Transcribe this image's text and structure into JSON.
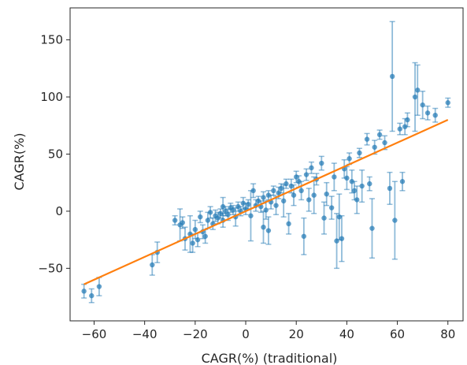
{
  "chart_data": {
    "type": "scatter",
    "title": "",
    "xlabel": "CAGR(%) (traditional)",
    "ylabel": "CAGR(%)",
    "xlim": [
      -69.5,
      86
    ],
    "ylim": [
      -96,
      178
    ],
    "xticks": [
      -60,
      -40,
      -20,
      0,
      20,
      40,
      60,
      80
    ],
    "yticks": [
      -50,
      0,
      50,
      100,
      150
    ],
    "xtick_labels": [
      "−60",
      "−40",
      "−20",
      "0",
      "20",
      "40",
      "60",
      "80"
    ],
    "ytick_labels": [
      "−50",
      "0",
      "50",
      "100",
      "150"
    ],
    "grid": false,
    "legend": "none",
    "colors": {
      "points": "#1f77b4",
      "fit_line": "#ff7f0e",
      "axes": "#262626"
    },
    "fit_line": {
      "x": [
        -64,
        80
      ],
      "y": [
        -64,
        80
      ]
    },
    "series": [
      {
        "points": [
          [
            -64,
            -70,
            6
          ],
          [
            -61,
            -74,
            6
          ],
          [
            -58,
            -66,
            8
          ],
          [
            -37,
            -47,
            9
          ],
          [
            -35,
            -36,
            9
          ],
          [
            -28,
            -8,
            4
          ],
          [
            -25,
            -10,
            5
          ],
          [
            -24,
            -24,
            10
          ],
          [
            -22,
            -20,
            16
          ],
          [
            -20,
            -16,
            8
          ],
          [
            -19,
            -25,
            6
          ],
          [
            -18,
            -5,
            5
          ],
          [
            -17,
            -18,
            6
          ],
          [
            -16,
            -22,
            6
          ],
          [
            -15,
            -8,
            7
          ],
          [
            -14,
            -1,
            5
          ],
          [
            -13,
            -11,
            5
          ],
          [
            -12,
            -4,
            5
          ],
          [
            -11,
            -6,
            5
          ],
          [
            -10,
            -2,
            4
          ],
          [
            -9,
            -8,
            6
          ],
          [
            -8,
            0,
            4
          ],
          [
            -7,
            -3,
            5
          ],
          [
            -6,
            3,
            4
          ],
          [
            -5,
            1,
            4
          ],
          [
            -4,
            -5,
            8
          ],
          [
            -3,
            4,
            4
          ],
          [
            -2,
            0,
            4
          ],
          [
            -1,
            7,
            5
          ],
          [
            0,
            2,
            5
          ],
          [
            1,
            6,
            4
          ],
          [
            2,
            -4,
            22
          ],
          [
            3,
            18,
            6
          ],
          [
            4,
            5,
            5
          ],
          [
            5,
            9,
            4
          ],
          [
            6,
            4,
            5
          ],
          [
            7,
            12,
            5
          ],
          [
            8,
            1,
            8
          ],
          [
            9,
            14,
            4
          ],
          [
            10,
            8,
            6
          ],
          [
            11,
            18,
            4
          ],
          [
            12,
            5,
            8
          ],
          [
            13,
            16,
            5
          ],
          [
            14,
            20,
            4
          ],
          [
            15,
            9,
            14
          ],
          [
            16,
            24,
            4
          ],
          [
            17,
            -11,
            9
          ],
          [
            18,
            22,
            6
          ],
          [
            19,
            14,
            9
          ],
          [
            20,
            30,
            5
          ],
          [
            21,
            26,
            5
          ],
          [
            22,
            18,
            8
          ],
          [
            23,
            -22,
            16
          ],
          [
            24,
            32,
            5
          ],
          [
            25,
            10,
            10
          ],
          [
            26,
            38,
            5
          ],
          [
            28,
            28,
            5
          ],
          [
            30,
            42,
            6
          ],
          [
            32,
            15,
            10
          ],
          [
            34,
            3,
            10
          ],
          [
            35,
            30,
            12
          ],
          [
            36,
            -26,
            24
          ],
          [
            37,
            -5,
            20
          ],
          [
            38,
            -24,
            20
          ],
          [
            39,
            37,
            8
          ],
          [
            40,
            29,
            10
          ],
          [
            41,
            46,
            5
          ],
          [
            43,
            18,
            8
          ],
          [
            45,
            51,
            4
          ],
          [
            46,
            22,
            14
          ],
          [
            48,
            63,
            5
          ],
          [
            49,
            24,
            6
          ],
          [
            50,
            -15,
            26
          ],
          [
            51,
            56,
            6
          ],
          [
            53,
            67,
            4
          ],
          [
            55,
            60,
            6
          ],
          [
            57,
            20,
            14
          ],
          [
            58,
            118,
            48
          ],
          [
            59,
            -8,
            34
          ],
          [
            61,
            72,
            5
          ],
          [
            62,
            26,
            8
          ],
          [
            64,
            80,
            6
          ],
          [
            67,
            100,
            30
          ],
          [
            68,
            106,
            22
          ],
          [
            72,
            86,
            6
          ],
          [
            75,
            84,
            6
          ],
          [
            80,
            95,
            4
          ],
          [
            -26,
            -12,
            14
          ],
          [
            -21,
            -28,
            8
          ],
          [
            -9,
            4,
            8
          ],
          [
            7,
            -14,
            14
          ],
          [
            9,
            -17,
            12
          ],
          [
            27,
            14,
            16
          ],
          [
            31,
            -6,
            14
          ],
          [
            42,
            26,
            10
          ],
          [
            44,
            10,
            12
          ],
          [
            63,
            74,
            7
          ],
          [
            70,
            93,
            12
          ]
        ]
      }
    ]
  }
}
